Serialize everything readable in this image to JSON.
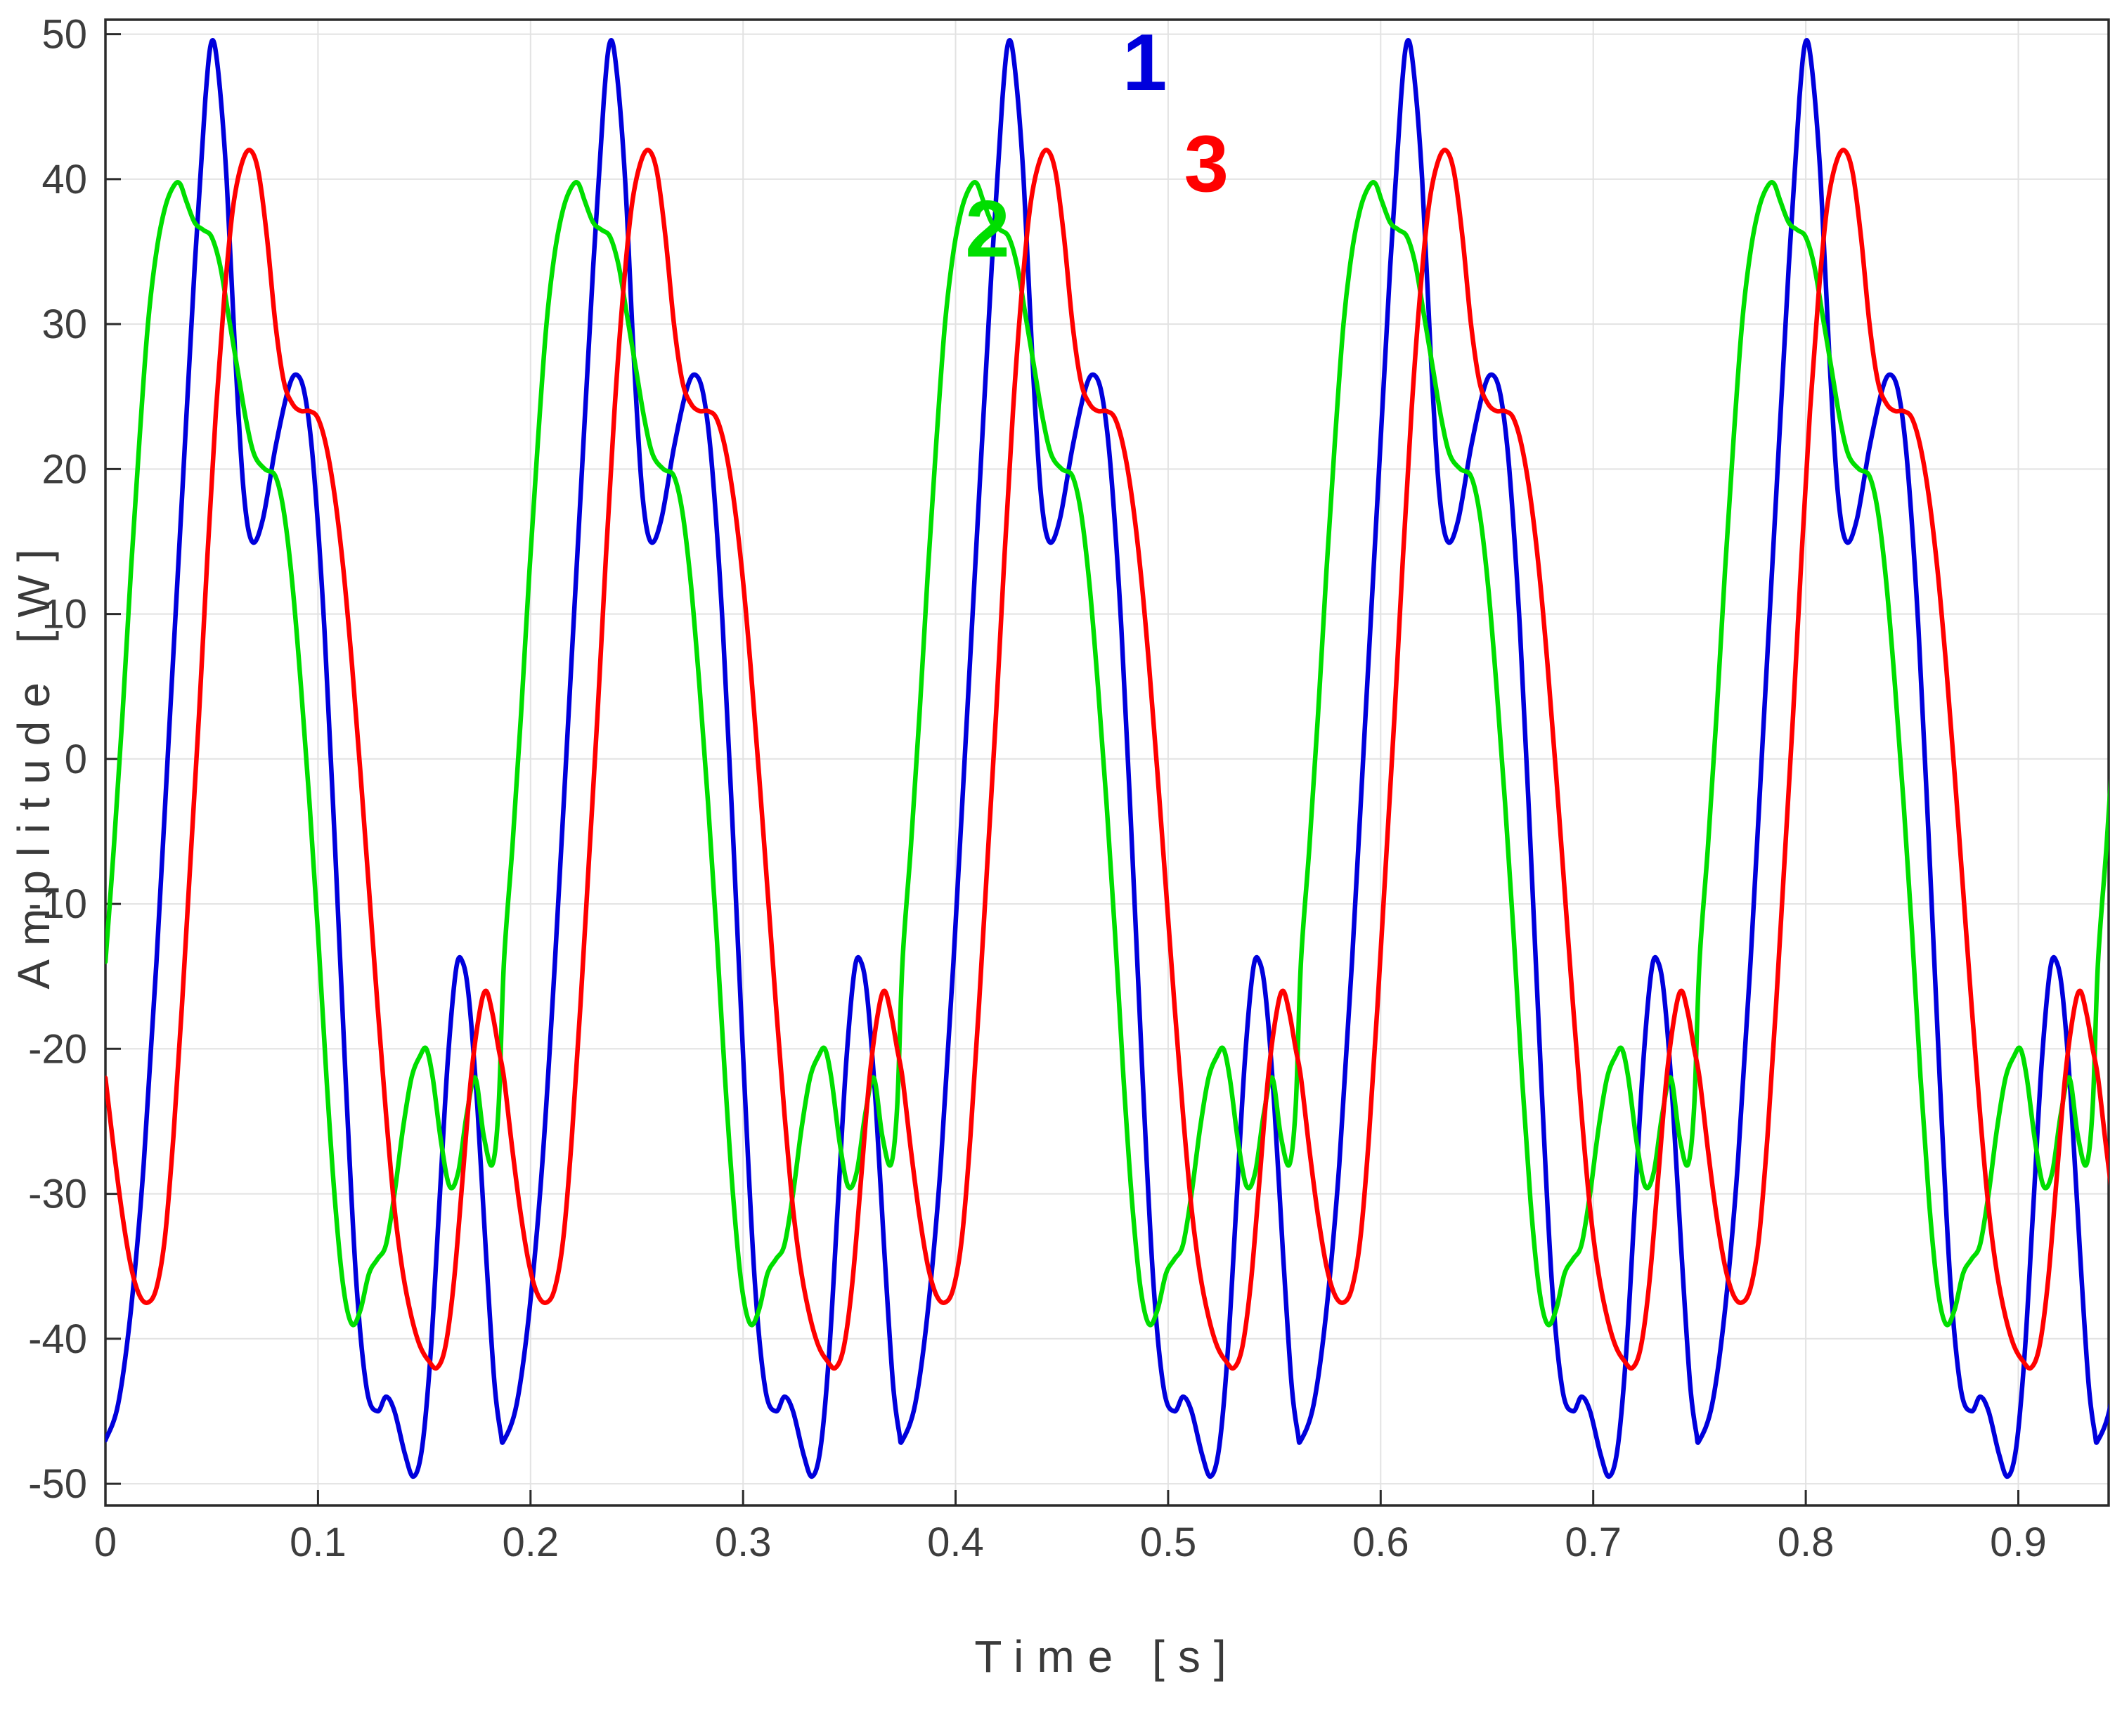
{
  "figure": {
    "background": "#FFFFFF"
  },
  "chart_data": {
    "type": "line",
    "title": "",
    "xlabel": "Time [s]",
    "ylabel": "Amplitude [W]",
    "xlim": [
      0,
      0.9425
    ],
    "ylim": [
      -51.5,
      51.0
    ],
    "grid": true,
    "grid_color": "#E2E2E2",
    "axis_color": "#2B2B2B",
    "tick_label_color": "#3D3D3D",
    "xticks": [
      0,
      0.1,
      0.2,
      0.3,
      0.4,
      0.5,
      0.6,
      0.7,
      0.8,
      0.9
    ],
    "xtick_labels": [
      "0",
      "0.1",
      "0.2",
      "0.3",
      "0.4",
      "0.5",
      "0.6",
      "0.7",
      "0.8",
      "0.9"
    ],
    "yticks": [
      -50,
      -40,
      -30,
      -20,
      -10,
      0,
      10,
      20,
      30,
      40,
      50
    ],
    "ytick_labels": [
      "-50",
      "-40",
      "-30",
      "-20",
      "-10",
      "0",
      "10",
      "20",
      "30",
      "40",
      "50"
    ],
    "period_s": 0.1875,
    "num_periods_visible": 5,
    "legend_position": "inline-annotations",
    "series": [
      {
        "name": "1",
        "color": "#0000DC",
        "line_width": 6.5,
        "peak_value": 49.5,
        "min_value": -49.5,
        "label": {
          "text": "1",
          "x": 0.489,
          "y": 48.0
        },
        "period_t": [
          0,
          0.006,
          0.012,
          0.018,
          0.024,
          0.03,
          0.036,
          0.042,
          0.047,
          0.05,
          0.053,
          0.057,
          0.061,
          0.065,
          0.069,
          0.074,
          0.08,
          0.086,
          0.09,
          0.094,
          0.098,
          0.103,
          0.108,
          0.113,
          0.118,
          0.123,
          0.128,
          0.132,
          0.136,
          0.141,
          0.145,
          0.149,
          0.153,
          0.157,
          0.161,
          0.165,
          0.168,
          0.171,
          0.175,
          0.179,
          0.183,
          0.186
        ],
        "period_v": [
          -47,
          -44.5,
          -38,
          -28,
          -14,
          2,
          18,
          34,
          45.5,
          49.5,
          47.5,
          40,
          28,
          18.5,
          15,
          16.5,
          21.5,
          25.5,
          26.5,
          25,
          20,
          9,
          -6,
          -22,
          -36,
          -43.5,
          -45,
          -44,
          -45,
          -48,
          -49.5,
          -47.5,
          -41,
          -31,
          -21,
          -14.5,
          -14,
          -16.5,
          -24,
          -34,
          -43,
          -46.5
        ]
      },
      {
        "name": "2",
        "color": "#00DE00",
        "line_width": 6.5,
        "peak_value": 39.7,
        "min_value": -39.5,
        "label": {
          "text": "2",
          "x": 0.415,
          "y": 36.5
        },
        "period_t": [
          0,
          0.004,
          0.008,
          0.012,
          0.016,
          0.02,
          0.024,
          0.028,
          0.032,
          0.035,
          0.038,
          0.042,
          0.046,
          0.05,
          0.054,
          0.058,
          0.062,
          0.066,
          0.07,
          0.075,
          0.08,
          0.084,
          0.088,
          0.092,
          0.096,
          0.1,
          0.104,
          0.108,
          0.112,
          0.116,
          0.12,
          0.124,
          0.128,
          0.132,
          0.136,
          0.14,
          0.144,
          0.148,
          0.151,
          0.154,
          0.158,
          0.162,
          0.166,
          0.17,
          0.174,
          0.178,
          0.182,
          0.185
        ],
        "period_v": [
          -14,
          -6,
          3,
          13,
          22,
          30,
          35,
          38,
          39.5,
          39.7,
          38.5,
          37,
          36.5,
          36,
          34,
          30.5,
          27,
          23.5,
          21,
          20,
          19.5,
          17,
          12,
          5,
          -3,
          -12,
          -22,
          -30.5,
          -36.5,
          -39,
          -38,
          -35.5,
          -34.5,
          -33.5,
          -30,
          -25.5,
          -22,
          -20.5,
          -20,
          -22,
          -26.5,
          -29.5,
          -28.5,
          -24.5,
          -22,
          -26,
          -28,
          -24
        ]
      },
      {
        "name": "3",
        "color": "#FF0000",
        "line_width": 6.5,
        "peak_value": 42.0,
        "min_value": -42.0,
        "label": {
          "text": "3",
          "x": 0.518,
          "y": 41.0
        },
        "period_t": [
          0,
          0.004,
          0.008,
          0.012,
          0.016,
          0.02,
          0.024,
          0.028,
          0.032,
          0.036,
          0.04,
          0.044,
          0.048,
          0.052,
          0.056,
          0.06,
          0.064,
          0.068,
          0.072,
          0.076,
          0.08,
          0.084,
          0.088,
          0.092,
          0.096,
          0.1,
          0.104,
          0.108,
          0.112,
          0.116,
          0.12,
          0.124,
          0.128,
          0.132,
          0.136,
          0.14,
          0.144,
          0.148,
          0.152,
          0.156,
          0.16,
          0.164,
          0.168,
          0.172,
          0.176,
          0.179,
          0.182,
          0.185
        ],
        "period_v": [
          -22,
          -27,
          -31.5,
          -35,
          -37,
          -37.5,
          -36.5,
          -33,
          -26,
          -17,
          -7,
          3,
          14,
          24,
          32,
          38,
          41,
          42,
          40.5,
          36,
          30,
          26,
          24.5,
          24,
          24,
          23.5,
          21.5,
          18,
          13,
          6.5,
          -1,
          -9,
          -17,
          -24.5,
          -31,
          -35.5,
          -38.5,
          -40.5,
          -41.5,
          -42,
          -40.5,
          -36,
          -29,
          -22,
          -17.5,
          -16,
          -17.5,
          -20
        ]
      }
    ]
  }
}
